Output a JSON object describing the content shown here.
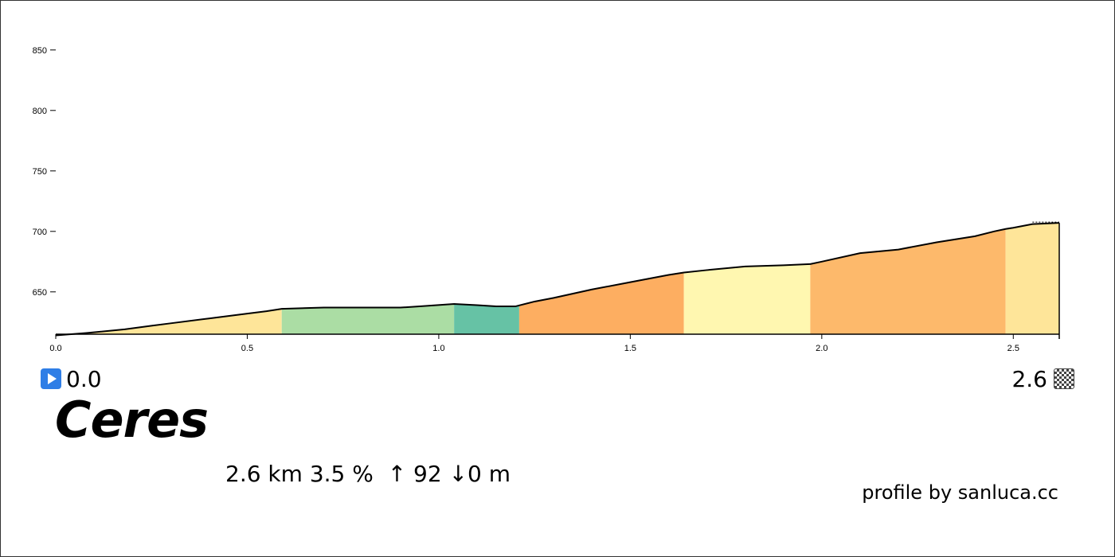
{
  "climb": {
    "name": "Ceres",
    "start_label": "0.0",
    "end_label": "2.6",
    "stats": {
      "distance": "2.6 km",
      "gradient": "3.5 %",
      "gain": "↑ 92",
      "loss": "↓0 m"
    },
    "credit": "profile by sanluca.cc"
  },
  "icons": {
    "start": "play-icon",
    "finish": "checkered-flag-icon"
  },
  "chart_data": {
    "type": "area",
    "title": "",
    "xlabel": "",
    "ylabel": "",
    "xlim": [
      0,
      2.62
    ],
    "ylim": [
      615,
      865
    ],
    "x_ticks": [
      0.0,
      0.5,
      1.0,
      1.5,
      2.0,
      2.5
    ],
    "x_tick_labels": [
      "0.0",
      "0.5",
      "1.0",
      "1.5",
      "2.0",
      "2.5"
    ],
    "y_ticks": [
      650,
      700,
      750,
      800,
      850
    ],
    "y_tick_labels": [
      "650",
      "700",
      "750",
      "800",
      "850"
    ],
    "grid": false,
    "profile": {
      "x": [
        0.0,
        0.08,
        0.18,
        0.25,
        0.3,
        0.4,
        0.5,
        0.55,
        0.59,
        0.7,
        0.8,
        0.9,
        0.95,
        1.04,
        1.1,
        1.15,
        1.2,
        1.25,
        1.3,
        1.4,
        1.5,
        1.6,
        1.64,
        1.7,
        1.8,
        1.9,
        1.97,
        2.0,
        2.1,
        2.2,
        2.3,
        2.4,
        2.45,
        2.48,
        2.5,
        2.55,
        2.62
      ],
      "y": [
        614,
        616,
        619,
        622,
        624,
        628,
        632,
        634,
        636,
        637,
        637,
        637,
        638,
        640,
        639,
        638,
        638,
        642,
        645,
        652,
        658,
        664,
        666,
        668,
        671,
        672,
        673,
        675,
        682,
        685,
        691,
        696,
        700,
        702,
        703,
        706,
        707
      ]
    },
    "segments": [
      {
        "start": 0.0,
        "end": 0.59,
        "color": "#fee599"
      },
      {
        "start": 0.59,
        "end": 1.04,
        "color": "#abdda4"
      },
      {
        "start": 1.04,
        "end": 1.21,
        "color": "#66c2a5"
      },
      {
        "start": 1.21,
        "end": 1.64,
        "color": "#fdae61"
      },
      {
        "start": 1.64,
        "end": 1.97,
        "color": "#fff7b0"
      },
      {
        "start": 1.97,
        "end": 2.48,
        "color": "#fdb96b"
      },
      {
        "start": 2.48,
        "end": 2.62,
        "color": "#fee599"
      }
    ]
  }
}
